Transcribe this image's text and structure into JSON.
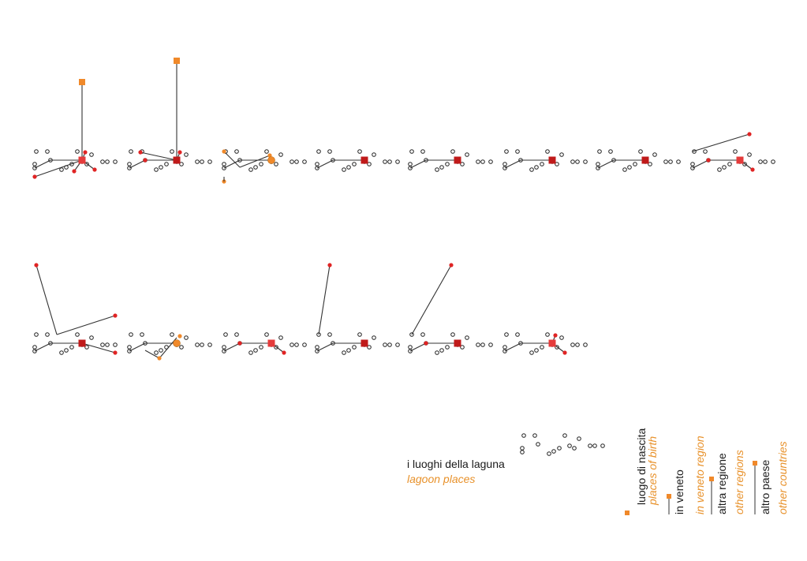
{
  "colors": {
    "birth": "#f0892a",
    "veneto": "#e02424",
    "other_region": "#f0892a",
    "birth_box_red": "#e53b3b",
    "birth_box_dark": "#c01a1a",
    "line": "#333333",
    "node_stroke": "#222222",
    "legend_orange": "#e8912a"
  },
  "legend": {
    "lagoon_it": "i luoghi della laguna",
    "lagoon_en": "lagoon places",
    "birth_it": "luogo di nascita",
    "birth_en": "places of birth",
    "veneto_it": "in veneto",
    "veneto_en": "in veneto region",
    "region_it": "altra regione",
    "region_en": "other regions",
    "country_it": "altro paese",
    "country_en": "other countries"
  },
  "diagrams": [
    {
      "id": 1,
      "center": "light-red",
      "links": [
        "tall-orange",
        "red-left-low",
        "red-down",
        "red-right",
        "red-up"
      ]
    },
    {
      "id": 2,
      "center": "dark-red",
      "links": [
        "very-tall-orange",
        "red-left",
        "red-far-left",
        "red-up"
      ]
    },
    {
      "id": 3,
      "center": "orange-circle",
      "links": [
        "orange-up",
        "orange-down",
        "orange-right"
      ]
    },
    {
      "id": 4,
      "center": "dark-red",
      "links": []
    },
    {
      "id": 5,
      "center": "dark-red",
      "links": []
    },
    {
      "id": 6,
      "center": "dark-red",
      "links": []
    },
    {
      "id": 7,
      "center": "dark-red",
      "links": []
    },
    {
      "id": 8,
      "center": "light-red",
      "links": [
        "red-far-right-up",
        "red-left",
        "red-right"
      ]
    },
    {
      "id": 9,
      "center": "dark-red",
      "links": [
        "red-far-up-left",
        "red-far-right"
      ]
    },
    {
      "id": 10,
      "center": "orange-circle",
      "links": [
        "orange-chain"
      ]
    },
    {
      "id": 11,
      "center": "light-red",
      "links": [
        "red-left",
        "red-right"
      ]
    },
    {
      "id": 12,
      "center": "dark-red",
      "links": [
        "red-far-up"
      ]
    },
    {
      "id": 13,
      "center": "dark-red",
      "links": [
        "red-far-up-right",
        "red-left"
      ]
    },
    {
      "id": 14,
      "center": "light-red",
      "links": [
        "red-up",
        "red-right"
      ]
    }
  ]
}
